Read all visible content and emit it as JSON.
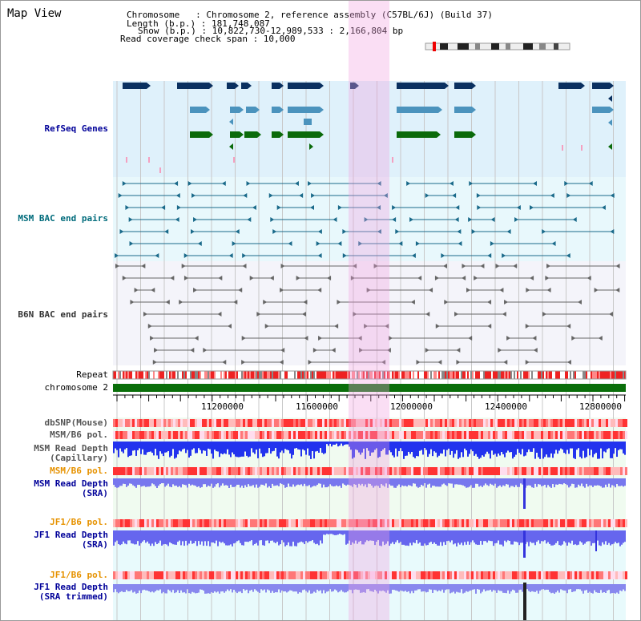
{
  "title": "Map View",
  "info": {
    "chromosome_line": "Chromosome   : Chromosome 2, reference assembly (C57BL/6J) (Build 37)",
    "length_line": "Length (b.p.) : 181,748,087",
    "show_line": "Show (b.p.) : 10,822,730-12,989,533 : 2,166,804 bp",
    "coverage_line": "Read coverage check span : 10,000"
  },
  "tracks": {
    "refseq": "RefSeq Genes",
    "msm_bac": "MSM BAC end pairs",
    "b6n_bac": "B6N BAC end pairs",
    "repeat": "Repeat",
    "chromosome": "chromosome 2",
    "dbsnp": "dbSNP(Mouse)",
    "msm_b6_pol1": "MSM/B6 pol.",
    "msm_depth_cap": "MSM Read Depth\n(Capillary)",
    "msm_b6_pol2": "MSM/B6 pol.",
    "msm_depth_sra": "MSM Read Depth\n(SRA)",
    "jf1_b6_pol1": "JF1/B6 pol.",
    "jf1_depth_sra": "JF1 Read Depth\n(SRA)",
    "jf1_b6_pol2": "JF1/B6 pol.",
    "jf1_depth_trim": "JF1 Read Depth\n(SRA trimmed)"
  },
  "axis_ticks": [
    "11200000",
    "11600000",
    "12000000",
    "12400000",
    "12800000"
  ],
  "colors": {
    "refseq_bg": "#dff1fb",
    "msm_bg": "#e8f8fc",
    "b6n_bg": "#f4f4fa",
    "highlight": "#f8d8f2",
    "gene_dark": "#0a3060",
    "gene_mid": "#4b93bd",
    "gene_green": "#0a6a0a",
    "msm_line": "#1a6a8a",
    "b6n_line": "#666666",
    "chrom_green": "#0a6e0a",
    "depth_blue": "#3333ee",
    "pol_red": "#ee3333",
    "label_blue": "#000099",
    "label_teal": "#006b7b",
    "label_orange": "#e69200"
  }
}
